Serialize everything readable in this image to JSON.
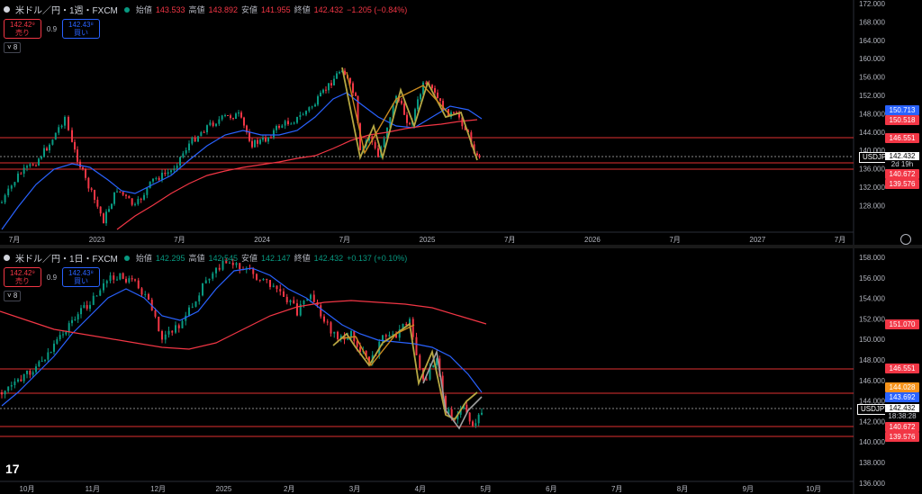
{
  "top": {
    "symbol": "米ドル／円・1週・FXCM",
    "open_lbl": "始値",
    "open": "143.533",
    "high_lbl": "高値",
    "high": "143.892",
    "low_lbl": "安値",
    "low": "141.955",
    "close_lbl": "終値",
    "close": "142.432",
    "change": "−1.205 (−0.84%)",
    "sell_price": "142.42⁹",
    "sell_label": "売り",
    "spread": "0.9",
    "buy_price": "142.43⁸",
    "buy_label": "買い",
    "collapse": "˅ 8",
    "y_ticks": [
      "172.000",
      "168.000",
      "164.000",
      "160.000",
      "156.000",
      "152.000",
      "148.000",
      "144.000",
      "140.000",
      "136.000",
      "132.000",
      "128.000"
    ],
    "x_ticks": [
      "7月",
      "2023",
      "7月",
      "2024",
      "7月",
      "2025",
      "7月",
      "2026",
      "7月",
      "2027",
      "7月"
    ],
    "price_labels": {
      "blue_ma": "150.713",
      "red_ma": "150.518",
      "line1": "146.551",
      "line2": "140.672",
      "line3": "139.576"
    },
    "ticker": "USDJPY",
    "last_price": "142.432",
    "countdown": "2d 19h"
  },
  "bottom": {
    "symbol": "米ドル／円・1日・FXCM",
    "open_lbl": "始値",
    "open": "142.295",
    "high_lbl": "高値",
    "high": "142.545",
    "low_lbl": "安値",
    "low": "142.147",
    "close_lbl": "終値",
    "close": "142.432",
    "change": "+0.137 (+0.10%)",
    "sell_price": "142.42⁹",
    "sell_label": "売り",
    "spread": "0.9",
    "buy_price": "142.43⁸",
    "buy_label": "買い",
    "collapse": "˅ 8",
    "y_ticks": [
      "158.000",
      "156.000",
      "154.000",
      "152.000",
      "150.000",
      "148.000",
      "146.000",
      "144.000",
      "142.000",
      "140.000",
      "138.000",
      "136.000"
    ],
    "x_ticks": [
      "10月",
      "11月",
      "12月",
      "2025",
      "2月",
      "3月",
      "4月",
      "5月",
      "6月",
      "7月",
      "8月",
      "9月",
      "10月"
    ],
    "price_labels": {
      "red_ma": "151.070",
      "line1": "146.551",
      "orange": "144.028",
      "blue_ma": "143.692",
      "line2": "140.672",
      "line3": "139.576"
    },
    "ticker": "USDJPY",
    "last_price": "142.432",
    "countdown": "18:38:28"
  },
  "colors": {
    "up": "#089981",
    "down": "#f23645",
    "blue_ma": "#2962ff",
    "red_ma": "#f23645",
    "zigzag_y": "#b5a642",
    "zigzag_o": "#c98a1f",
    "zigzag_w": "#9e9e9e",
    "hline": "#e03030"
  },
  "logo": "17"
}
